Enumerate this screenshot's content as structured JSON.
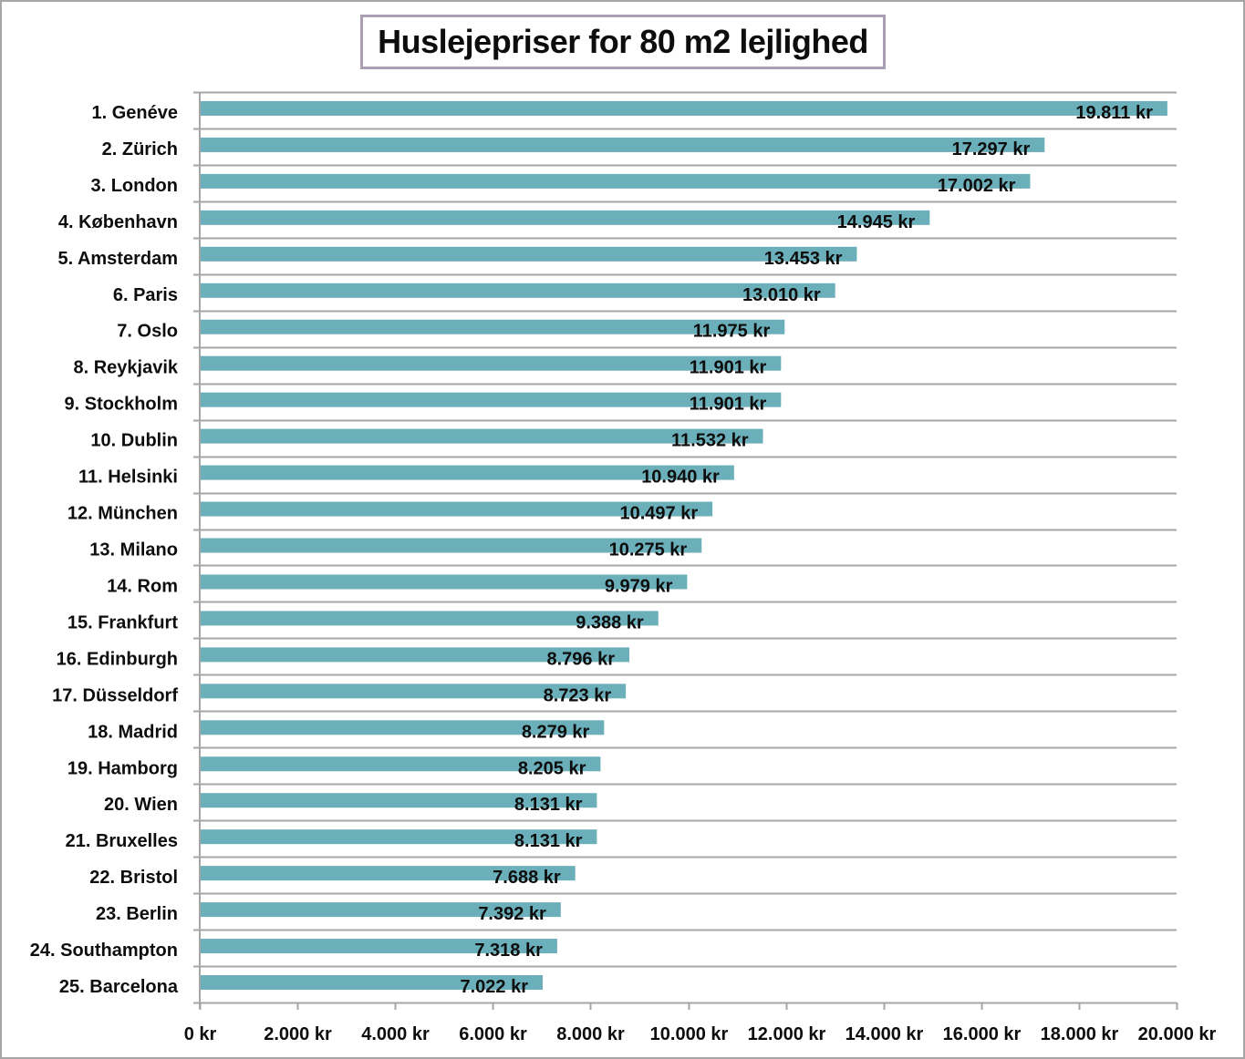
{
  "chart_data": {
    "type": "bar",
    "orientation": "horizontal",
    "title": "Huslejepriser for 80 m2 lejlighed",
    "xlabel": "",
    "ylabel": "",
    "xlim": [
      0,
      20000
    ],
    "x_ticks": [
      0,
      2000,
      4000,
      6000,
      8000,
      10000,
      12000,
      14000,
      16000,
      18000,
      20000
    ],
    "x_tick_labels": [
      "0 kr",
      "2.000 kr",
      "4.000 kr",
      "6.000 kr",
      "8.000 kr",
      "10.000 kr",
      "12.000 kr",
      "14.000 kr",
      "16.000 kr",
      "18.000 kr",
      "20.000 kr"
    ],
    "grid": "horizontal category separators",
    "legend": "none",
    "bar_color": "#6bafba",
    "categories": [
      "1. Genéve",
      "2. Zürich",
      "3. London",
      "4. København",
      "5. Amsterdam",
      "6. Paris",
      "7. Oslo",
      "8. Reykjavik",
      "9. Stockholm",
      "10. Dublin",
      "11. Helsinki",
      "12. München",
      "13. Milano",
      "14. Rom",
      "15. Frankfurt",
      "16. Edinburgh",
      "17. Düsseldorf",
      "18. Madrid",
      "19. Hamborg",
      "20. Wien",
      "21. Bruxelles",
      "22. Bristol",
      "23. Berlin",
      "24. Southampton",
      "25. Barcelona"
    ],
    "values": [
      19811,
      17297,
      17002,
      14945,
      13453,
      13010,
      11975,
      11901,
      11901,
      11532,
      10940,
      10497,
      10275,
      9979,
      9388,
      8796,
      8723,
      8279,
      8205,
      8131,
      8131,
      7688,
      7392,
      7318,
      7022
    ],
    "data_labels": [
      "19.811 kr",
      "17.297 kr",
      "17.002 kr",
      "14.945 kr",
      "13.453 kr",
      "13.010 kr",
      "11.975 kr",
      "11.901 kr",
      "11.901 kr",
      "11.532 kr",
      "10.940 kr",
      "10.497 kr",
      "10.275 kr",
      "9.979 kr",
      "9.388 kr",
      "8.796 kr",
      "8.723 kr",
      "8.279 kr",
      "8.205 kr",
      "8.131 kr",
      "8.131 kr",
      "7.688 kr",
      "7.392 kr",
      "7.318 kr",
      "7.022 kr"
    ]
  }
}
